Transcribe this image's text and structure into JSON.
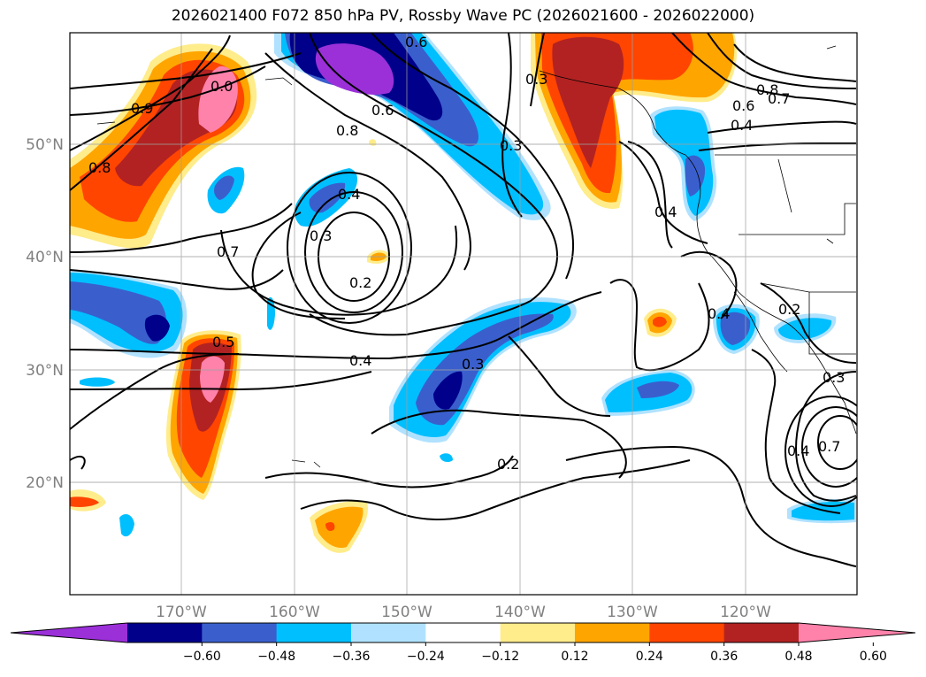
{
  "title": "2026021400 F072 850 hPa PV, Rossby Wave PC (2026021600 - 2026022000)",
  "lon_labels": [
    "170°W",
    "160°W",
    "150°W",
    "140°W",
    "130°W",
    "120°W"
  ],
  "lat_labels": [
    "50°N",
    "40°N",
    "30°N",
    "20°N"
  ],
  "colorbar": {
    "tick_labels": [
      "−0.60",
      "−0.48",
      "−0.36",
      "−0.24",
      "−0.12",
      "0.12",
      "0.24",
      "0.36",
      "0.48",
      "0.60"
    ],
    "colors": [
      "#9b30d9",
      "#00008b",
      "#3a5fcd",
      "#00bfff",
      "#b0e2ff",
      "#ffffff",
      "#ffec8b",
      "#ffa500",
      "#ff4500",
      "#b22222",
      "#ff82ab"
    ]
  },
  "contour_labels": [
    "0.6",
    "0.8",
    "0.6",
    "0.8",
    "0.4",
    "0.3",
    "0.2",
    "0.7",
    "0.5",
    "0.4",
    "0.3",
    "0.2",
    "0.3",
    "0.3",
    "0.8",
    "0.7",
    "0.6",
    "0.4",
    "0.4",
    "0.4",
    "0.2",
    "0.3",
    "0.4",
    "0.7",
    "0.9",
    "0.0"
  ]
}
